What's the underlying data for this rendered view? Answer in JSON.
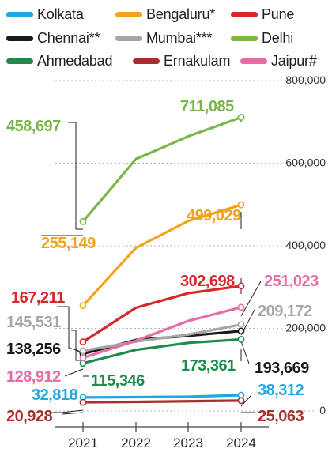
{
  "chart_data": {
    "type": "line",
    "categories": [
      "2021",
      "2022",
      "2023",
      "2024"
    ],
    "ylim": [
      0,
      800000
    ],
    "yticks": [
      0,
      200000,
      400000,
      600000,
      800000
    ],
    "ytick_labels": [
      "0",
      "200,000",
      "400,000",
      "600,000",
      "800,000"
    ],
    "grid": true,
    "legend_placement": "top",
    "series": [
      {
        "name": "Kolkata",
        "color": "#1ea8e0",
        "values": [
          32818,
          33500,
          34500,
          38312
        ],
        "start_label": "32,818",
        "end_label": "38,312"
      },
      {
        "name": "Bengaluru*",
        "color": "#f2a31b",
        "values": [
          255149,
          395000,
          460000,
          499029
        ],
        "start_label": "255,149",
        "end_label": "499,029"
      },
      {
        "name": "Pune",
        "color": "#d62828",
        "values": [
          167211,
          250000,
          285000,
          302698
        ],
        "start_label": "167,211",
        "end_label": "302,698"
      },
      {
        "name": "Chennai**",
        "color": "#1a1a1a",
        "values": [
          138256,
          172000,
          182000,
          193669
        ],
        "start_label": "138,256",
        "end_label": "193,669"
      },
      {
        "name": "Mumbai***",
        "color": "#a6a6a6",
        "values": [
          145531,
          168000,
          185000,
          209172
        ],
        "start_label": "145,531",
        "end_label": "209,172"
      },
      {
        "name": "Delhi",
        "color": "#7ab648",
        "values": [
          458697,
          610000,
          665000,
          711085
        ],
        "start_label": "458,697",
        "end_label": "711,085"
      },
      {
        "name": "Ahmedabad",
        "color": "#1f8a4c",
        "values": [
          115346,
          148000,
          165000,
          173361
        ],
        "start_label": "115,346",
        "end_label": "173,361"
      },
      {
        "name": "Ernakulam",
        "color": "#a82f2f",
        "values": [
          20928,
          22000,
          23500,
          25063
        ],
        "start_label": "20,928",
        "end_label": "25,063"
      },
      {
        "name": "Jaipur#",
        "color": "#e86aa6",
        "values": [
          128912,
          170000,
          218000,
          251023
        ],
        "start_label": "128,912",
        "end_label": "251,023"
      }
    ]
  }
}
